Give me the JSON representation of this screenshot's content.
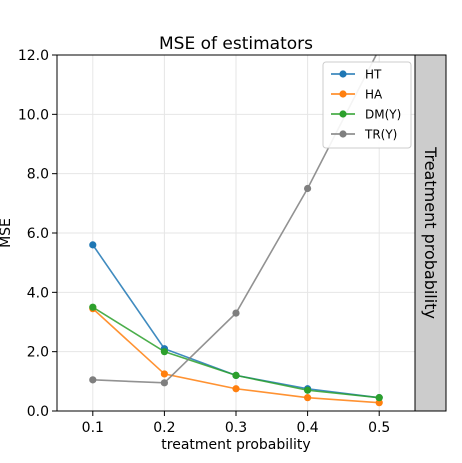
{
  "chart_data": {
    "type": "line",
    "title": "MSE of estimators",
    "xlabel": "treatment probability",
    "ylabel": "MSE",
    "facet_label": "Treatment probability",
    "x": [
      0.1,
      0.2,
      0.3,
      0.4,
      0.5
    ],
    "x_ticks": [
      "0.1",
      "0.2",
      "0.3",
      "0.4",
      "0.5"
    ],
    "y_ticks": [
      "0.0",
      "2.0",
      "4.0",
      "6.0",
      "8.0",
      "10.0",
      "12.0"
    ],
    "xlim": [
      0.05,
      0.55
    ],
    "ylim": [
      0,
      12
    ],
    "grid": true,
    "legend_position": "top-right",
    "series": [
      {
        "name": "HT",
        "color": "#1f77b4",
        "values": [
          5.6,
          2.1,
          1.2,
          0.75,
          0.45
        ]
      },
      {
        "name": "HA",
        "color": "#ff7f0e",
        "values": [
          3.45,
          1.25,
          0.75,
          0.45,
          0.28
        ]
      },
      {
        "name": "DM(Y)",
        "color": "#2ca02c",
        "values": [
          3.5,
          2.0,
          1.2,
          0.7,
          0.45
        ]
      },
      {
        "name": "TR(Y)",
        "color": "#7f7f7f",
        "values": [
          1.05,
          0.95,
          3.3,
          7.5,
          12.2
        ]
      }
    ]
  }
}
